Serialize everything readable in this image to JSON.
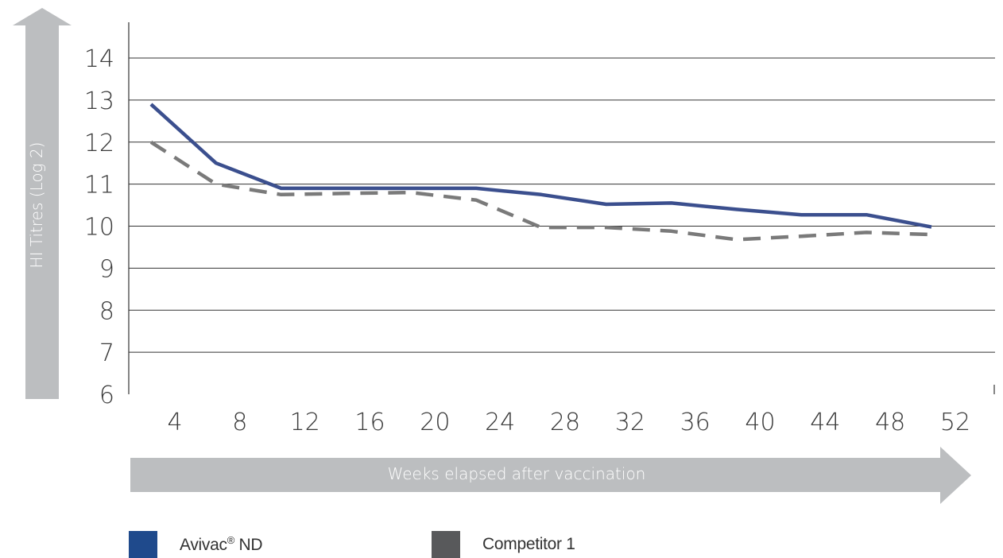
{
  "chart_data": {
    "type": "line",
    "ylabel": "HI Titres (Log 2)",
    "xlabel": "Weeks elapsed after vaccination",
    "ylim": [
      6,
      14
    ],
    "yticks": [
      "6",
      "7",
      "8",
      "9",
      "10",
      "11",
      "12",
      "13",
      "14"
    ],
    "x": [
      4,
      8,
      12,
      16,
      20,
      24,
      28,
      32,
      36,
      40,
      44,
      48,
      52
    ],
    "xticks": [
      "4",
      "8",
      "12",
      "16",
      "20",
      "24",
      "28",
      "32",
      "36",
      "40",
      "44",
      "48",
      "52"
    ],
    "grid": "horizontal",
    "legend_position": "bottom",
    "series": [
      {
        "name": "Avivac® ND",
        "legend_main": "Avivac",
        "legend_sup": "®",
        "legend_tail": " ND",
        "color": "#3b4f8e",
        "swatch_color": "#1f4a8c",
        "style": "solid",
        "values": [
          12.9,
          11.5,
          10.9,
          10.9,
          10.9,
          10.9,
          10.75,
          10.52,
          10.55,
          10.4,
          10.27,
          10.27,
          9.98
        ]
      },
      {
        "name": "Competitor 1",
        "color": "#7a7a7a",
        "swatch_color": "#58595b",
        "style": "dashed",
        "values": [
          12.0,
          11.0,
          10.75,
          10.78,
          10.8,
          10.62,
          9.97,
          9.97,
          9.88,
          9.68,
          9.76,
          9.85,
          9.8
        ]
      }
    ]
  }
}
